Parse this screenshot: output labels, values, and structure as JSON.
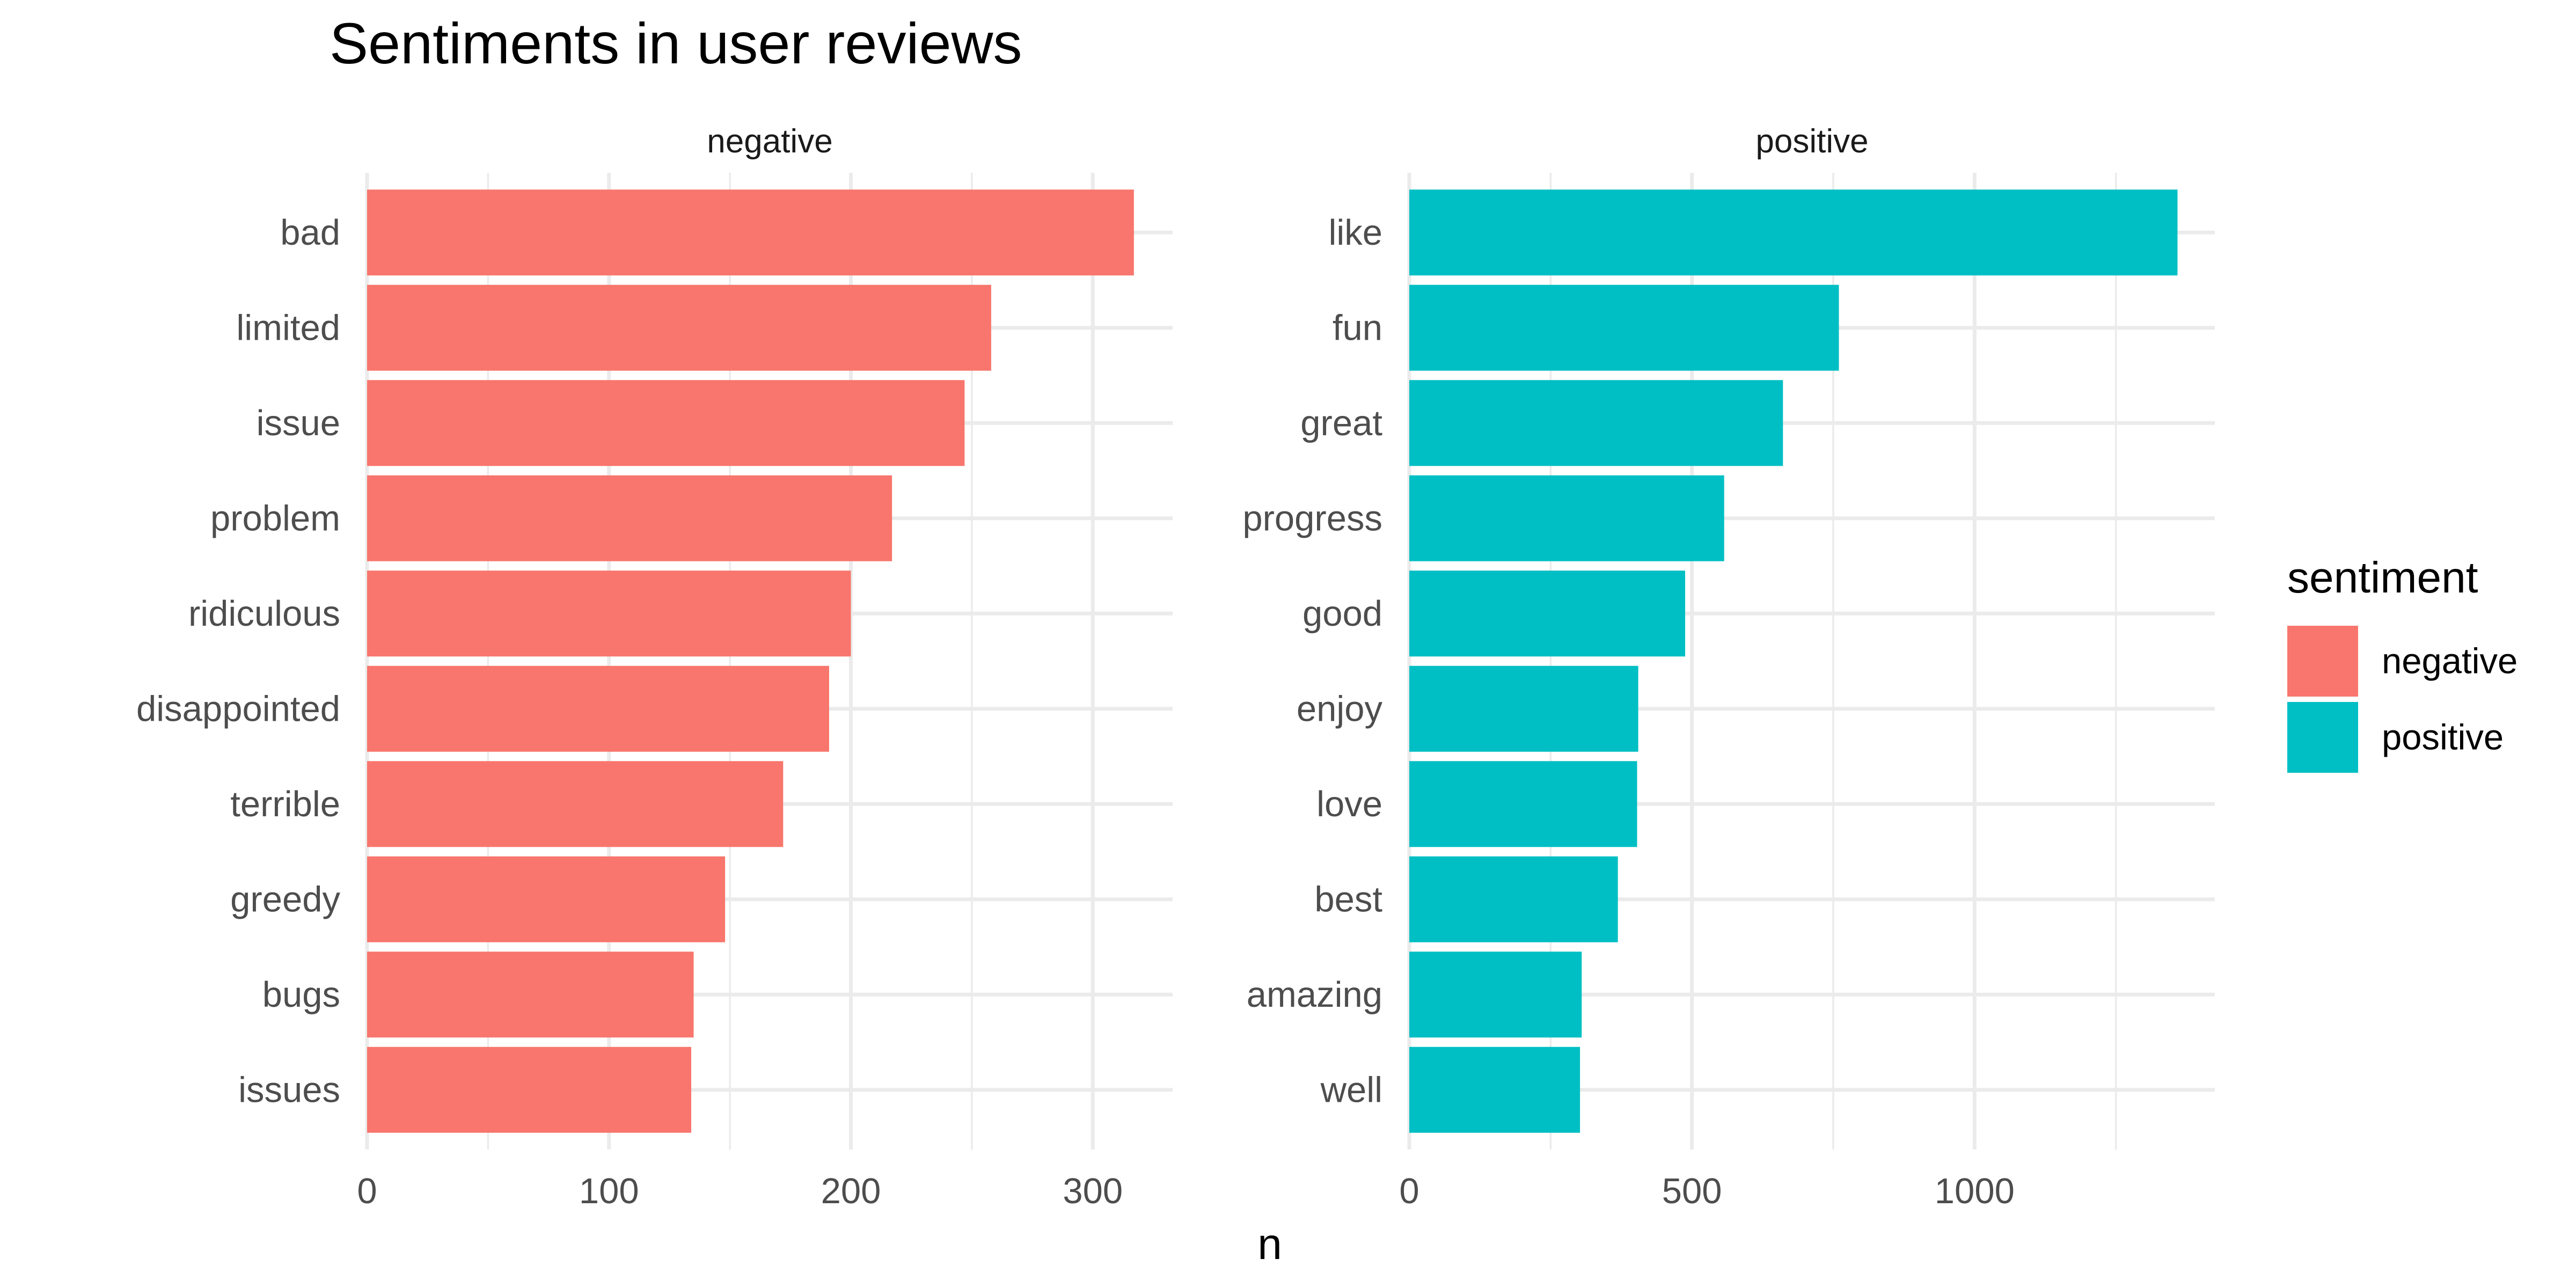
{
  "chart_data": {
    "type": "bar",
    "orientation": "horizontal",
    "title": "Sentiments in user reviews",
    "xlabel": "n",
    "ylabel": "",
    "grid": true,
    "legend": {
      "title": "sentiment",
      "placement": "right",
      "entries": [
        {
          "label": "negative",
          "color": "#F8766D"
        },
        {
          "label": "positive",
          "color": "#00BFC4"
        }
      ]
    },
    "panels": [
      {
        "facet": "negative",
        "color": "#F8766D",
        "xlim": [
          0,
          333
        ],
        "ticks": [
          0,
          100,
          200,
          300
        ],
        "tick_labels": [
          "0",
          "100",
          "200",
          "300"
        ],
        "minor_ticks": [
          50,
          150,
          250
        ],
        "categories": [
          "bad",
          "limited",
          "issue",
          "problem",
          "ridiculous",
          "disappointed",
          "terrible",
          "greedy",
          "bugs",
          "issues"
        ],
        "values": [
          317,
          258,
          247,
          217,
          200,
          191,
          172,
          148,
          135,
          134
        ]
      },
      {
        "facet": "positive",
        "color": "#00BFC4",
        "xlim": [
          0,
          1425
        ],
        "ticks": [
          0,
          500,
          1000
        ],
        "tick_labels": [
          "0",
          "500",
          "1000"
        ],
        "minor_ticks": [
          250,
          750,
          1250
        ],
        "categories": [
          "like",
          "fun",
          "great",
          "progress",
          "good",
          "enjoy",
          "love",
          "best",
          "amazing",
          "well"
        ],
        "values": [
          1359,
          760,
          661,
          557,
          488,
          405,
          403,
          369,
          305,
          302
        ]
      }
    ]
  }
}
